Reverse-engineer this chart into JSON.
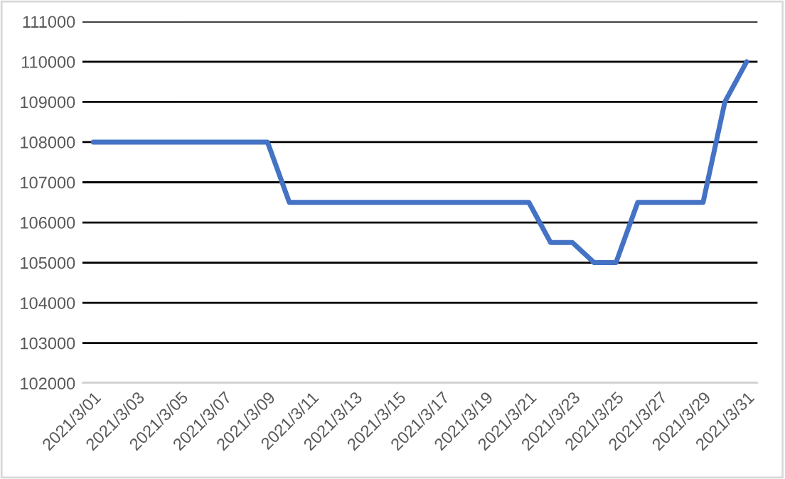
{
  "chart_data": {
    "type": "line",
    "categories": [
      "2021/3/01",
      null,
      "2021/3/03",
      null,
      "2021/3/05",
      null,
      "2021/3/07",
      null,
      "2021/3/09",
      null,
      "2021/3/11",
      null,
      "2021/3/13",
      null,
      "2021/3/15",
      null,
      "2021/3/17",
      null,
      "2021/3/19",
      null,
      "2021/3/21",
      null,
      "2021/3/23",
      null,
      "2021/3/25",
      null,
      "2021/3/27",
      null,
      "2021/3/29",
      null,
      "2021/3/31"
    ],
    "series": [
      {
        "color": "#4472c4",
        "values": [
          108000,
          108000,
          108000,
          108000,
          108000,
          108000,
          108000,
          108000,
          108000,
          106500,
          106500,
          106500,
          106500,
          106500,
          106500,
          106500,
          106500,
          106500,
          106500,
          106500,
          106500,
          105500,
          105500,
          105000,
          105000,
          106500,
          106500,
          106500,
          106500,
          109000,
          110000
        ]
      }
    ],
    "ylim": [
      102000,
      111000
    ],
    "yticks": [
      102000,
      103000,
      104000,
      105000,
      106000,
      107000,
      108000,
      109000,
      110000,
      111000
    ],
    "grid": "y",
    "marker": "none",
    "line_style": "solid"
  }
}
